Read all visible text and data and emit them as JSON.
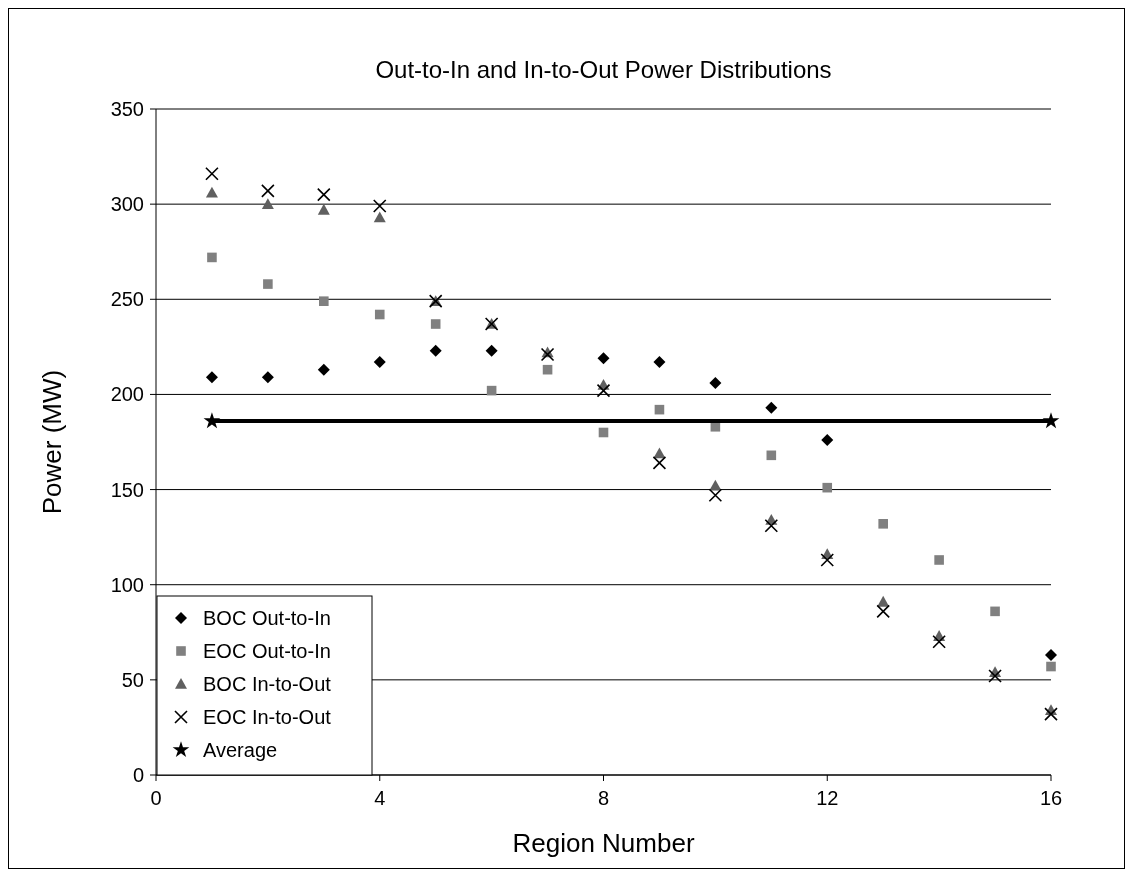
{
  "chart_data": {
    "type": "scatter",
    "title": "Out-to-In and In-to-Out Power Distributions",
    "xlabel": "Region Number",
    "ylabel": "Power (MW)",
    "x": [
      1,
      2,
      3,
      4,
      5,
      6,
      7,
      8,
      9,
      10,
      11,
      12,
      13,
      14,
      15,
      16
    ],
    "xlim": [
      0,
      16
    ],
    "xticks": [
      0,
      4,
      8,
      12,
      16
    ],
    "ylim": [
      0,
      350
    ],
    "yticks": [
      0,
      50,
      100,
      150,
      200,
      250,
      300,
      350
    ],
    "grid": "y",
    "legend": "bottom left",
    "series": [
      {
        "name": "BOC Out-to-In",
        "color": "#000000",
        "marker": "diamond",
        "values": [
          209,
          209,
          213,
          217,
          223,
          223,
          null,
          219,
          217,
          206,
          193,
          176,
          null,
          null,
          null,
          63
        ]
      },
      {
        "name": "EOC Out-to-In",
        "color": "#808080",
        "marker": "square",
        "values": [
          272,
          258,
          249,
          242,
          237,
          202,
          213,
          180,
          192,
          183,
          168,
          151,
          132,
          113,
          86,
          57
        ]
      },
      {
        "name": "BOC In-to-Out",
        "color": "#606060",
        "marker": "triangle",
        "values": [
          306,
          300,
          297,
          293,
          249,
          237,
          222,
          205,
          169,
          152,
          134,
          116,
          91,
          73,
          54,
          34
        ]
      },
      {
        "name": "EOC In-to-Out",
        "color": "#000000",
        "marker": "cross",
        "values": [
          316,
          307,
          305,
          299,
          249,
          237,
          221,
          202,
          164,
          147,
          131,
          113,
          86,
          70,
          52,
          32
        ]
      },
      {
        "name": "Average",
        "type": "line",
        "color": "#000000",
        "marker": "star",
        "line_style": "solid",
        "x": [
          1,
          16
        ],
        "values": [
          186,
          186
        ]
      }
    ]
  }
}
